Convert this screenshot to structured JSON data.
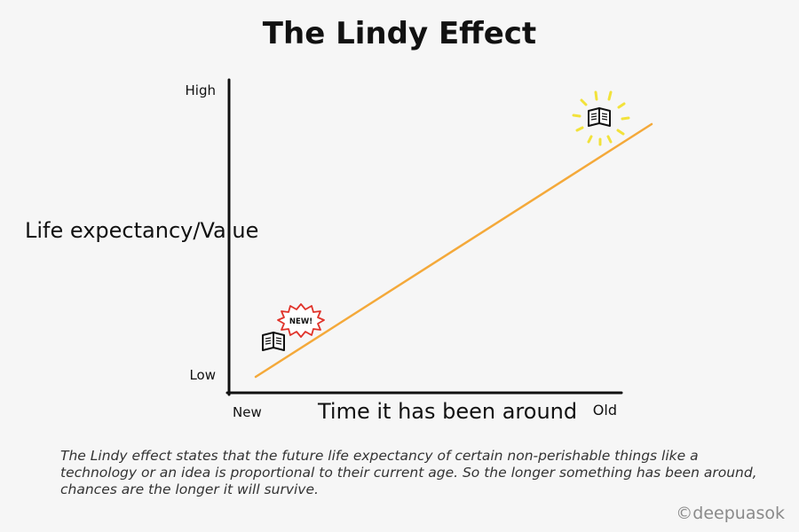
{
  "title": "The Lindy Effect",
  "axes": {
    "y_label": "Life expectancy/Value",
    "y_high": "High",
    "y_low": "Low",
    "x_label": "Time it has been around",
    "x_new": "New",
    "x_old": "Old"
  },
  "badge_text": "NEW!",
  "caption": "The Lindy effect states that the future life expectancy of certain non-perishable things like a technology or an idea is proportional to their current age. So the longer something has been around, chances are the longer it will survive.",
  "credit": "©deepuasok",
  "colors": {
    "line": "#f4a93a",
    "glow": "#f2e23a",
    "badge": "#e0332a",
    "axis": "#111111"
  },
  "icons": {
    "new_item": "book-icon",
    "old_item": "book-icon",
    "burst": "starburst-icon"
  }
}
